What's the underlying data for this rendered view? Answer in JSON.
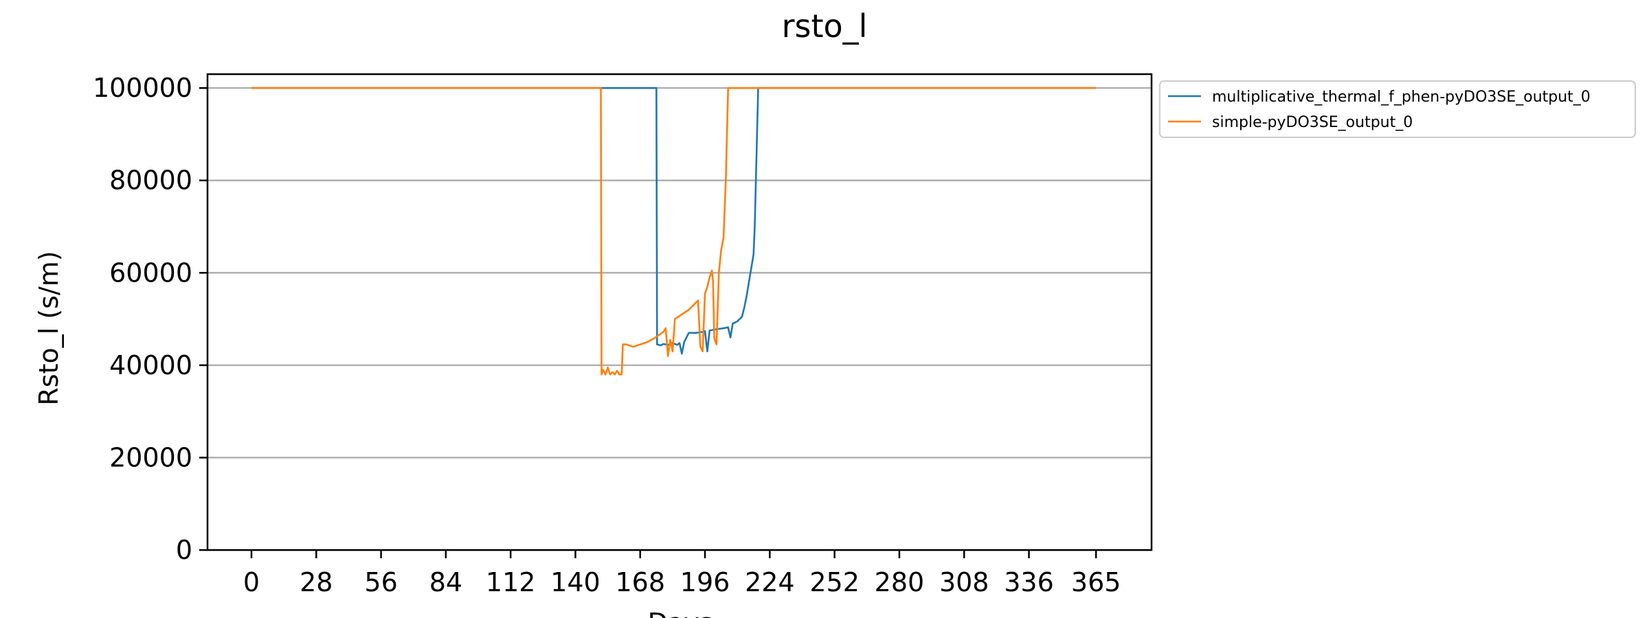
{
  "chart_data": {
    "type": "line",
    "title": "rsto_l",
    "xlabel": "Days",
    "ylabel": "Rsto_l (s/m)",
    "xlim": [
      -19,
      389
    ],
    "ylim": [
      0,
      103000
    ],
    "x_ticks": [
      0,
      28,
      56,
      84,
      112,
      140,
      168,
      196,
      224,
      252,
      280,
      308,
      336,
      365
    ],
    "y_ticks": [
      0,
      20000,
      40000,
      60000,
      80000,
      100000
    ],
    "grid": "horizontal",
    "legend_position": "outside-top-right",
    "series": [
      {
        "name": "multiplicative_thermal_f_phen-pyDO3SE_output_0",
        "color": "#1f77b4",
        "points": [
          [
            0,
            100000
          ],
          [
            175,
            100000
          ],
          [
            175.3,
            44500
          ],
          [
            177,
            44300
          ],
          [
            178,
            44600
          ],
          [
            180,
            44400
          ],
          [
            182,
            44800
          ],
          [
            184,
            44400
          ],
          [
            185,
            44800
          ],
          [
            186,
            42500
          ],
          [
            187,
            45000
          ],
          [
            188,
            46000
          ],
          [
            189,
            47000
          ],
          [
            192,
            47000
          ],
          [
            195,
            47200
          ],
          [
            196,
            47400
          ],
          [
            197,
            43000
          ],
          [
            198,
            47500
          ],
          [
            201,
            47800
          ],
          [
            204,
            48000
          ],
          [
            206,
            48200
          ],
          [
            207,
            46000
          ],
          [
            208,
            49000
          ],
          [
            210,
            49500
          ],
          [
            212,
            50500
          ],
          [
            213,
            52500
          ],
          [
            214,
            55000
          ],
          [
            215,
            58000
          ],
          [
            216,
            61000
          ],
          [
            217,
            64000
          ],
          [
            217.5,
            70000
          ],
          [
            218,
            80000
          ],
          [
            218.5,
            90000
          ],
          [
            219,
            100000
          ],
          [
            365,
            100000
          ]
        ]
      },
      {
        "name": "simple-pyDO3SE_output_0",
        "color": "#ff7f0e",
        "points": [
          [
            0,
            100000
          ],
          [
            151,
            100000
          ],
          [
            151.3,
            38000
          ],
          [
            152,
            39000
          ],
          [
            153,
            38000
          ],
          [
            154,
            39500
          ],
          [
            155,
            38000
          ],
          [
            156,
            38500
          ],
          [
            157,
            38000
          ],
          [
            158,
            38800
          ],
          [
            159,
            38000
          ],
          [
            160,
            38000
          ],
          [
            160.5,
            44500
          ],
          [
            162,
            44500
          ],
          [
            165,
            44000
          ],
          [
            168,
            44500
          ],
          [
            171,
            45000
          ],
          [
            174,
            45800
          ],
          [
            176,
            46500
          ],
          [
            178,
            47200
          ],
          [
            179,
            48000
          ],
          [
            180,
            42000
          ],
          [
            181,
            45500
          ],
          [
            182,
            43000
          ],
          [
            183,
            50000
          ],
          [
            186,
            51000
          ],
          [
            189,
            52000
          ],
          [
            192,
            53500
          ],
          [
            193,
            54000
          ],
          [
            194,
            44000
          ],
          [
            195,
            43000
          ],
          [
            196,
            55500
          ],
          [
            197,
            57000
          ],
          [
            198,
            59000
          ],
          [
            199,
            60500
          ],
          [
            199.5,
            58000
          ],
          [
            200,
            46000
          ],
          [
            200.5,
            45000
          ],
          [
            201,
            44500
          ],
          [
            202,
            60000
          ],
          [
            203,
            65000
          ],
          [
            204,
            67500
          ],
          [
            205,
            80000
          ],
          [
            205.5,
            90000
          ],
          [
            206,
            100000
          ],
          [
            365,
            100000
          ]
        ]
      }
    ]
  }
}
